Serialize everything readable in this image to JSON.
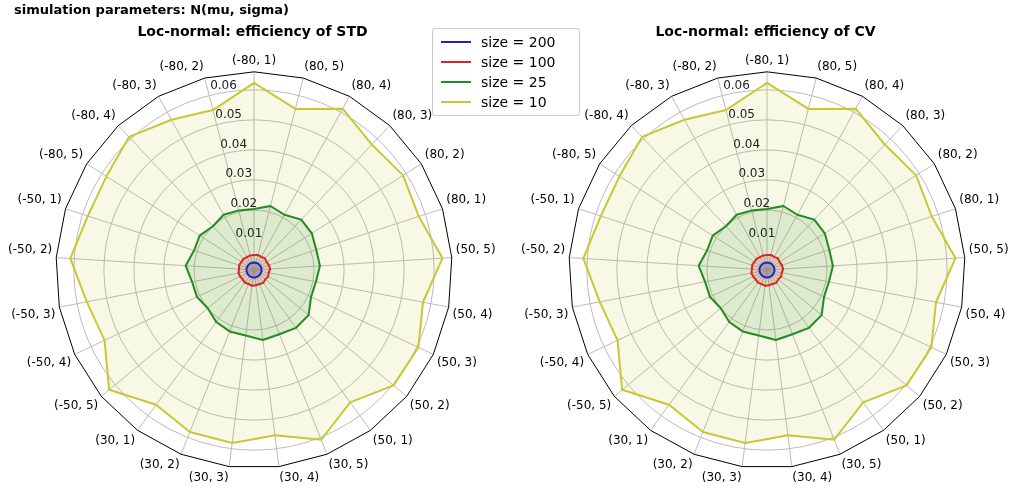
{
  "chart_data": [
    {
      "type": "radar",
      "title": "Loc-normal: efficiency of STD",
      "annotations": [
        "simulation parameters: N(mu, sigma)"
      ],
      "categories": [
        "(-80, 1)",
        "(80, 5)",
        "(80, 4)",
        "(80, 3)",
        "(80, 2)",
        "(80, 1)",
        "(50, 5)",
        "(50, 4)",
        "(50, 3)",
        "(50, 2)",
        "(50, 1)",
        "(30, 5)",
        "(30, 4)",
        "(30, 3)",
        "(30, 2)",
        "(30, 1)",
        "(-50, 5)",
        "(-50, 4)",
        "(-50, 3)",
        "(-50, 2)",
        "(-50, 1)",
        "(-80, 5)",
        "(-80, 4)",
        "(-80, 3)",
        "(-80, 2)"
      ],
      "series": [
        {
          "name": "size = 200",
          "color": "#2222cc",
          "values": [
            0.0025,
            0.0025,
            0.0025,
            0.0025,
            0.0025,
            0.0025,
            0.0025,
            0.0025,
            0.0025,
            0.0025,
            0.0025,
            0.0025,
            0.0025,
            0.0025,
            0.0025,
            0.0025,
            0.0025,
            0.0025,
            0.0025,
            0.0025,
            0.0025,
            0.0025,
            0.0025,
            0.0025,
            0.0025
          ]
        },
        {
          "name": "size = 100",
          "color": "#dd2222",
          "values": [
            0.005,
            0.0052,
            0.005,
            0.0053,
            0.005,
            0.0052,
            0.0054,
            0.005,
            0.0052,
            0.0049,
            0.0053,
            0.005,
            0.0051,
            0.0053,
            0.005,
            0.0052,
            0.0049,
            0.0051,
            0.0053,
            0.005,
            0.0052,
            0.005,
            0.0051,
            0.0049,
            0.005
          ]
        },
        {
          "name": "size = 25",
          "color": "#228b22",
          "values": [
            0.0203,
            0.022,
            0.021,
            0.023,
            0.0228,
            0.0218,
            0.022,
            0.021,
            0.021,
            0.0236,
            0.0238,
            0.023,
            0.0235,
            0.022,
            0.022,
            0.0214,
            0.02,
            0.021,
            0.021,
            0.0228,
            0.021,
            0.0214,
            0.02,
            0.021,
            0.0205
          ]
        },
        {
          "name": "size = 10",
          "color": "#c8c832",
          "values": [
            0.0623,
            0.0554,
            0.0613,
            0.0573,
            0.0588,
            0.0577,
            0.0629,
            0.0573,
            0.0605,
            0.0603,
            0.0545,
            0.0608,
            0.0555,
            0.0581,
            0.058,
            0.0555,
            0.0626,
            0.055,
            0.0567,
            0.0613,
            0.0582,
            0.0582,
            0.0608,
            0.0571,
            0.055
          ]
        }
      ],
      "ylim": [
        0,
        0.066
      ],
      "yticks": [
        0.01,
        0.02,
        0.03,
        0.04,
        0.05,
        0.06
      ],
      "grid": true,
      "legend": "top right",
      "marker": "none"
    },
    {
      "type": "radar",
      "title": "Loc-normal: efficiency of CV",
      "categories": [
        "(-80, 1)",
        "(80, 5)",
        "(80, 4)",
        "(80, 3)",
        "(80, 2)",
        "(80, 1)",
        "(50, 5)",
        "(50, 4)",
        "(50, 3)",
        "(50, 2)",
        "(50, 1)",
        "(30, 5)",
        "(30, 4)",
        "(30, 3)",
        "(30, 2)",
        "(30, 1)",
        "(-50, 5)",
        "(-50, 4)",
        "(-50, 3)",
        "(-50, 2)",
        "(-50, 1)",
        "(-80, 5)",
        "(-80, 4)",
        "(-80, 3)",
        "(-80, 2)"
      ],
      "series": [
        {
          "color": "#2222cc",
          "values": [
            0.0025,
            0.0025,
            0.0025,
            0.0025,
            0.0025,
            0.0025,
            0.0025,
            0.0025,
            0.0025,
            0.0025,
            0.0025,
            0.0025,
            0.0025,
            0.0025,
            0.0025,
            0.0025,
            0.0025,
            0.0025,
            0.0025,
            0.0025,
            0.0025,
            0.0025,
            0.0025,
            0.0025,
            0.0025
          ]
        },
        {
          "color": "#dd2222",
          "values": [
            0.005,
            0.0052,
            0.005,
            0.0053,
            0.005,
            0.0052,
            0.0054,
            0.005,
            0.0052,
            0.0049,
            0.0053,
            0.005,
            0.0051,
            0.0053,
            0.005,
            0.0052,
            0.0049,
            0.0051,
            0.0053,
            0.005,
            0.0052,
            0.005,
            0.0051,
            0.0049,
            0.005
          ]
        },
        {
          "color": "#228b22",
          "values": [
            0.0203,
            0.022,
            0.021,
            0.023,
            0.0228,
            0.0218,
            0.022,
            0.021,
            0.021,
            0.0236,
            0.0238,
            0.023,
            0.0235,
            0.022,
            0.022,
            0.0214,
            0.02,
            0.021,
            0.021,
            0.0228,
            0.021,
            0.0214,
            0.02,
            0.021,
            0.0205
          ]
        },
        {
          "color": "#c8c832",
          "values": [
            0.0623,
            0.0554,
            0.0613,
            0.0573,
            0.0588,
            0.0577,
            0.0629,
            0.0573,
            0.0605,
            0.0603,
            0.0545,
            0.0608,
            0.0555,
            0.0581,
            0.058,
            0.0555,
            0.0626,
            0.055,
            0.0567,
            0.0613,
            0.0582,
            0.0582,
            0.0608,
            0.0571,
            0.055
          ]
        }
      ],
      "ylim": [
        0,
        0.066
      ],
      "yticks": [
        0.01,
        0.02,
        0.03,
        0.04,
        0.05,
        0.06
      ],
      "grid": true,
      "marker": "none"
    }
  ]
}
